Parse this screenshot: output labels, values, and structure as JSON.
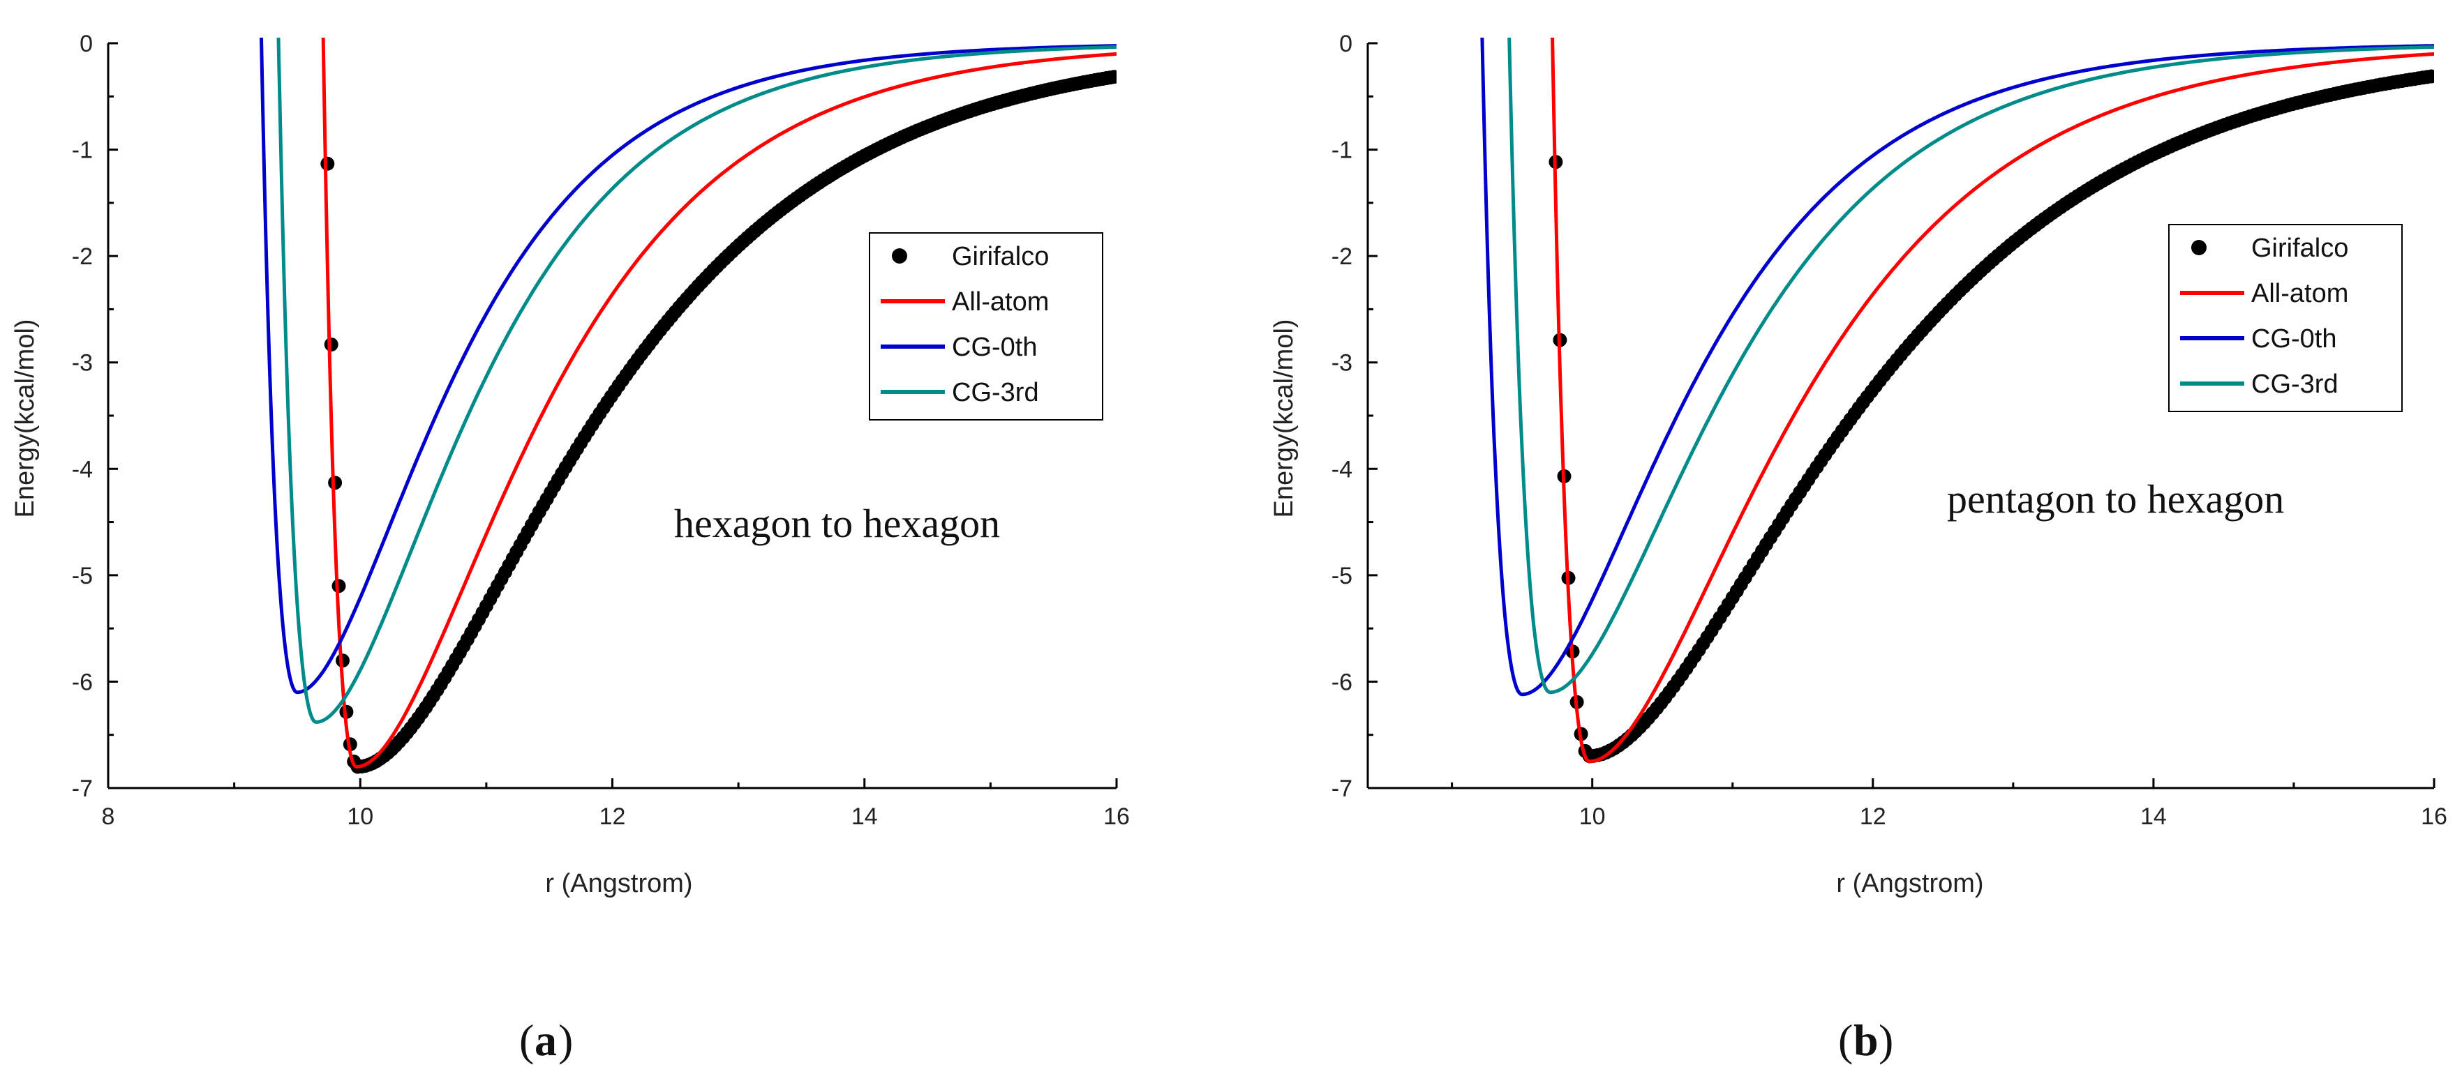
{
  "chart_data": [
    {
      "type": "line",
      "panel_label": "a",
      "annotation": "hexagon to hexagon",
      "xlabel": "r (Angstrom)",
      "ylabel": "Energy(kcal/mol)",
      "xlim": [
        8,
        16
      ],
      "ylim": [
        -7,
        0
      ],
      "xticks": [
        8,
        10,
        12,
        14,
        16
      ],
      "yticks": [
        0,
        -1,
        -2,
        -3,
        -4,
        -5,
        -6,
        -7
      ],
      "legend_position": "right",
      "series": [
        {
          "name": "Girifalco",
          "color": "#000000",
          "style": "markers",
          "r0": 9.98,
          "depth": 6.8,
          "left_width": 0.37,
          "right_width": 1.6,
          "x_start": 9.5,
          "step": 0.03
        },
        {
          "name": "All-atom",
          "color": "#ff0000",
          "style": "line",
          "r0": 9.97,
          "depth": 6.8,
          "left_width": 0.38,
          "right_width": 1.23
        },
        {
          "name": "CG-0th",
          "color": "#0000cc",
          "style": "line",
          "r0": 9.5,
          "depth": 6.1,
          "left_width": 0.41,
          "right_width": 1.04
        },
        {
          "name": "CG-3rd",
          "color": "#008b8b",
          "style": "line",
          "r0": 9.65,
          "depth": 6.38,
          "left_width": 0.43,
          "right_width": 1.08
        }
      ]
    },
    {
      "type": "line",
      "panel_label": "b",
      "annotation": "pentagon to hexagon",
      "xlabel": "r (Angstrom)",
      "ylabel": "Energy(kcal/mol)",
      "xlim": [
        8.4,
        16
      ],
      "ylim": [
        -7,
        0
      ],
      "xticks": [
        10,
        12,
        14,
        16
      ],
      "yticks": [
        0,
        -1,
        -2,
        -3,
        -4,
        -5,
        -6,
        -7
      ],
      "legend_position": "right",
      "series": [
        {
          "name": "Girifalco",
          "color": "#000000",
          "style": "markers",
          "r0": 9.98,
          "depth": 6.7,
          "left_width": 0.37,
          "right_width": 1.6,
          "x_start": 9.5,
          "step": 0.03
        },
        {
          "name": "All-atom",
          "color": "#ff0000",
          "style": "line",
          "r0": 9.98,
          "depth": 6.75,
          "left_width": 0.38,
          "right_width": 1.23
        },
        {
          "name": "CG-0th",
          "color": "#0000cc",
          "style": "line",
          "r0": 9.5,
          "depth": 6.12,
          "left_width": 0.41,
          "right_width": 1.04
        },
        {
          "name": "CG-3rd",
          "color": "#008b8b",
          "style": "line",
          "r0": 9.7,
          "depth": 6.1,
          "left_width": 0.42,
          "right_width": 1.08
        }
      ]
    }
  ]
}
